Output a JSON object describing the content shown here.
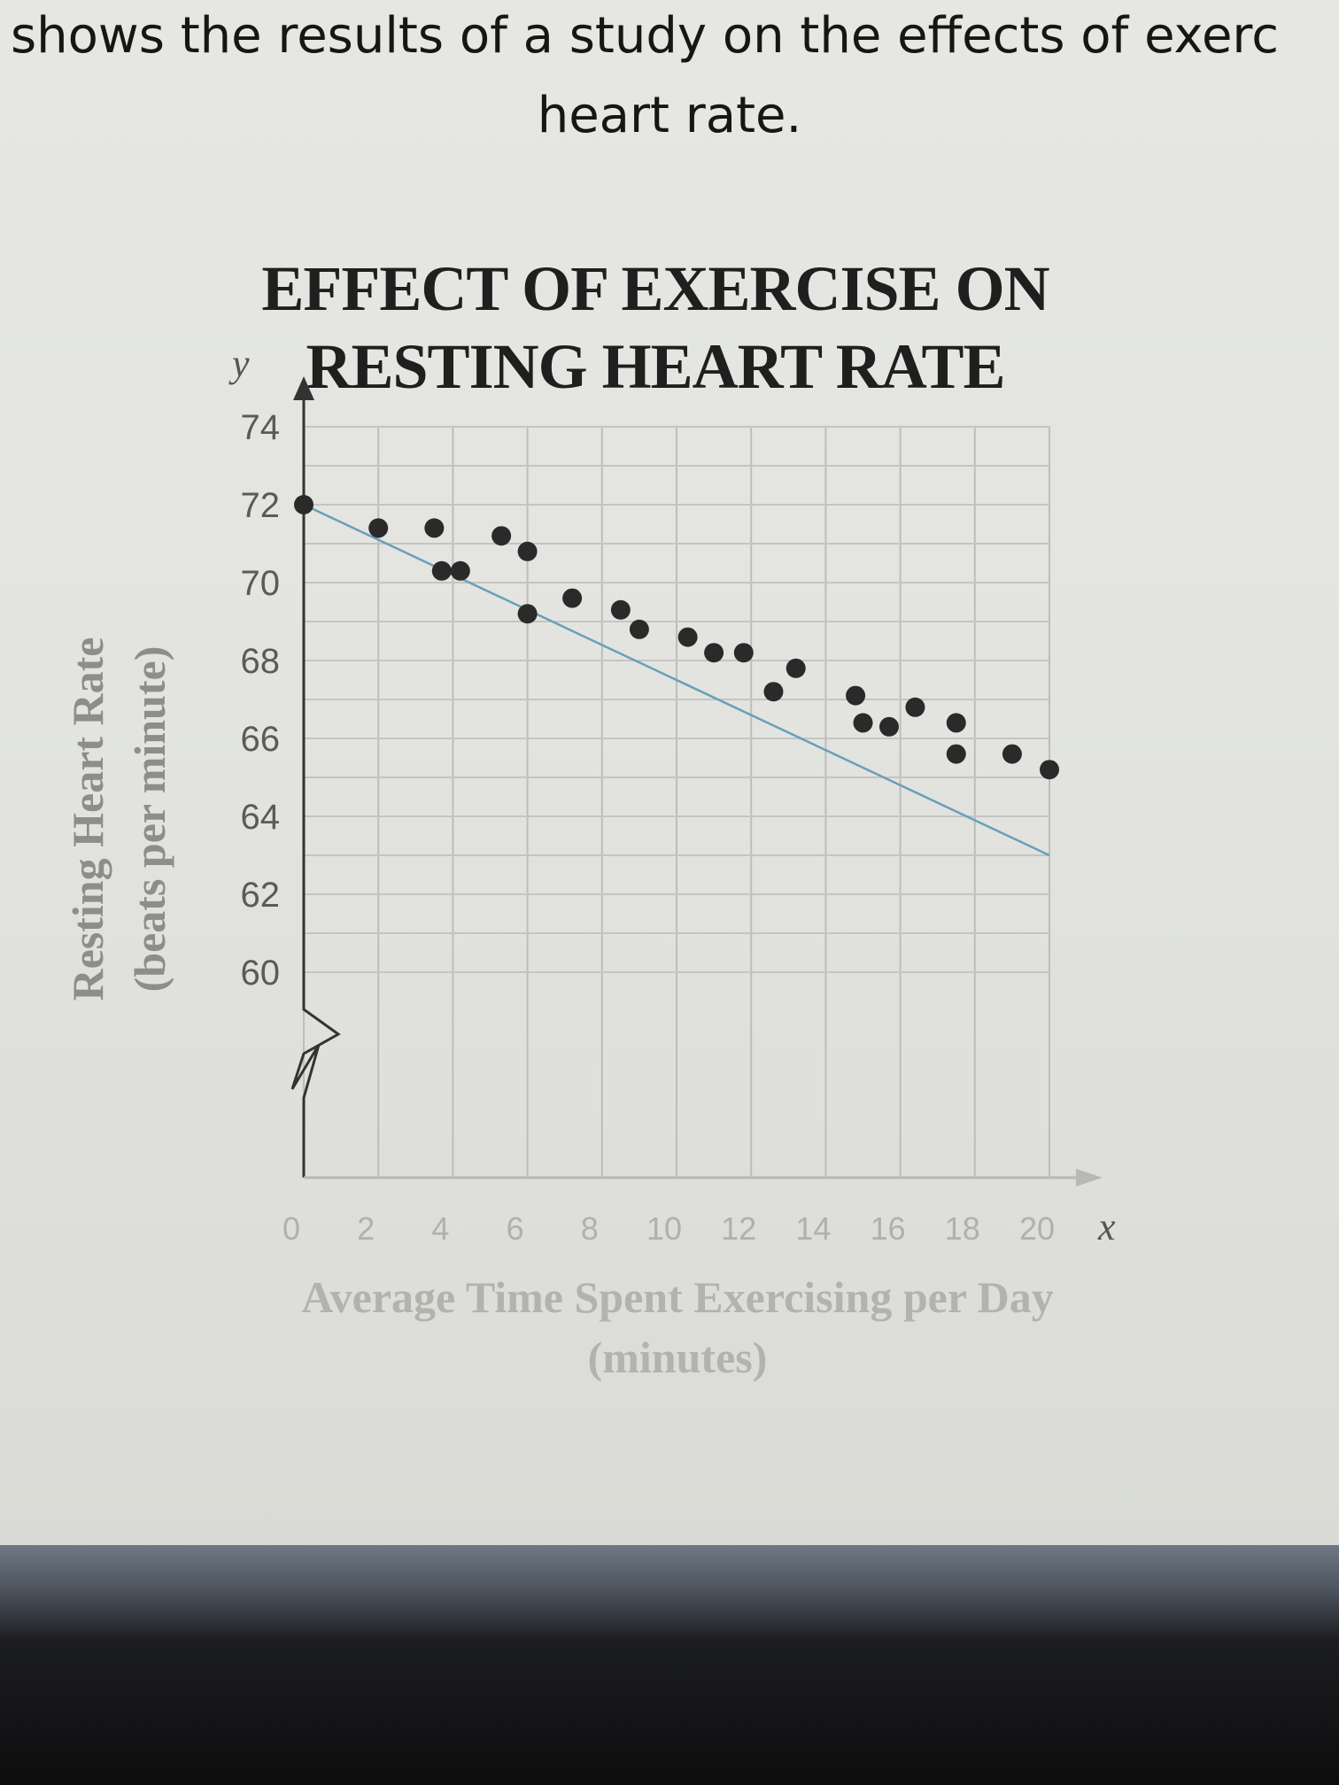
{
  "intro": {
    "line1": "shows the results of a study on the effects of exerc",
    "line2": "heart rate."
  },
  "chart_data": {
    "type": "scatter",
    "title": "EFFECT OF EXERCISE ON RESTING HEART RATE",
    "title_lines": [
      "EFFECT OF EXERCISE ON",
      "RESTING HEART RATE"
    ],
    "xlabel": "Average Time Spent Exercising per Day",
    "xlabel_units": "(minutes)",
    "ylabel": "Resting Heart Rate",
    "ylabel_units": "(beats per minute)",
    "x_var": "x",
    "y_var": "y",
    "xlim": [
      0,
      20
    ],
    "ylim": [
      60,
      74
    ],
    "x_ticks": [
      "0",
      "2",
      "4",
      "6",
      "8",
      "10",
      "12",
      "14",
      "16",
      "18",
      "20"
    ],
    "y_ticks": [
      "60",
      "62",
      "64",
      "66",
      "68",
      "70",
      "72",
      "74"
    ],
    "grid": true,
    "points": [
      {
        "x": 0,
        "y": 72
      },
      {
        "x": 2,
        "y": 71.4
      },
      {
        "x": 3.5,
        "y": 71.4
      },
      {
        "x": 3.7,
        "y": 70.3
      },
      {
        "x": 4.2,
        "y": 70.3
      },
      {
        "x": 5.3,
        "y": 71.2
      },
      {
        "x": 6,
        "y": 70.8
      },
      {
        "x": 6,
        "y": 69.2
      },
      {
        "x": 7.2,
        "y": 69.6
      },
      {
        "x": 8.5,
        "y": 69.3
      },
      {
        "x": 9,
        "y": 68.8
      },
      {
        "x": 10.3,
        "y": 68.6
      },
      {
        "x": 11,
        "y": 68.2
      },
      {
        "x": 11.8,
        "y": 68.2
      },
      {
        "x": 12.6,
        "y": 67.2
      },
      {
        "x": 13.2,
        "y": 67.8
      },
      {
        "x": 14.8,
        "y": 67.1
      },
      {
        "x": 15,
        "y": 66.4
      },
      {
        "x": 15.7,
        "y": 66.3
      },
      {
        "x": 16.4,
        "y": 66.8
      },
      {
        "x": 17.5,
        "y": 66.4
      },
      {
        "x": 17.5,
        "y": 65.6
      },
      {
        "x": 19,
        "y": 65.6
      },
      {
        "x": 20,
        "y": 65.2
      }
    ],
    "trend_line": {
      "x": [
        0,
        20
      ],
      "y": [
        72,
        63
      ]
    }
  }
}
